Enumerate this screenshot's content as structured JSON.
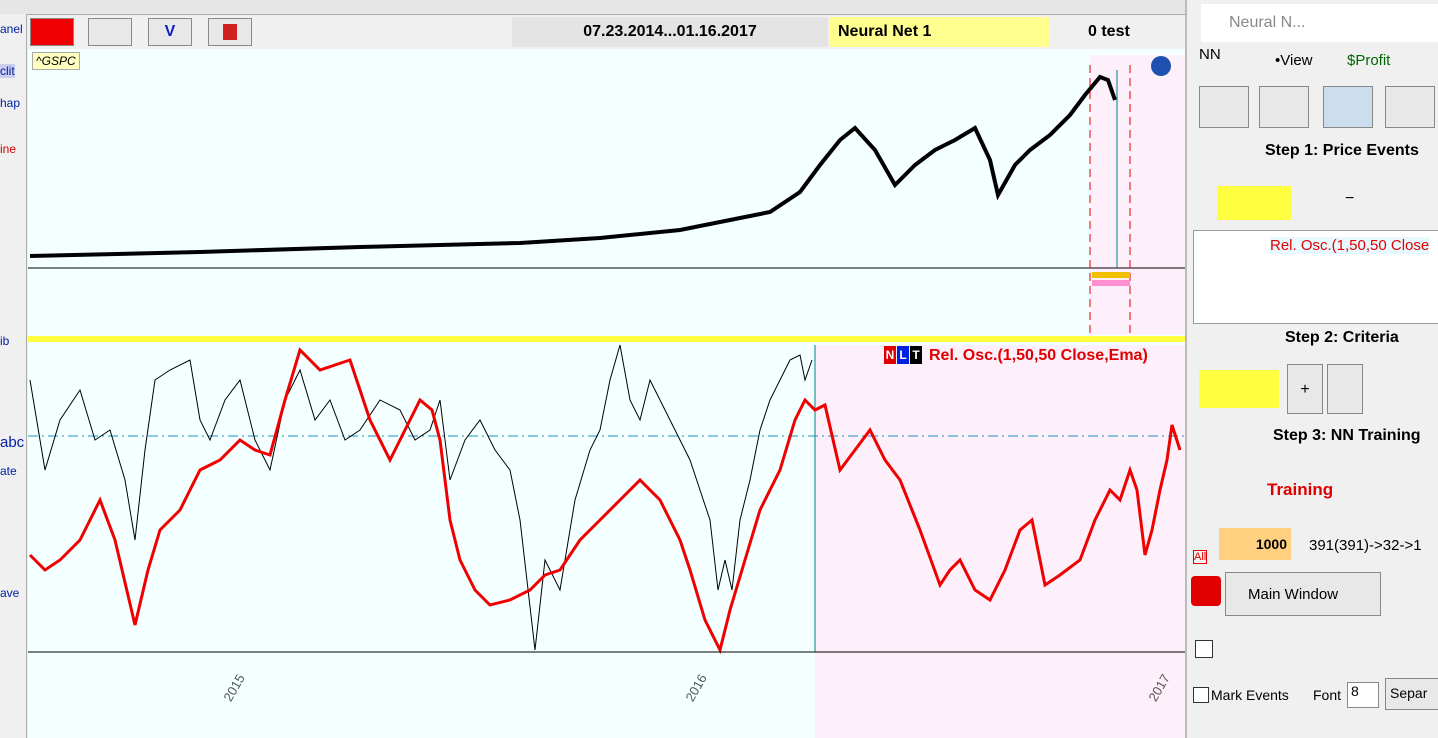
{
  "toolbar": {
    "date_range": "07.23.2014...01.16.2017",
    "model": "Neural Net  1",
    "mode": "0 test"
  },
  "left_tools": [
    "anel",
    "clit",
    "hap",
    "ine",
    "ib",
    "abc",
    "ate",
    "ave"
  ],
  "price_chart": {
    "symbol": "^GSPC"
  },
  "oscillator_chart": {
    "indicator_flags": [
      "N",
      "L",
      "T"
    ],
    "indicator": "Rel. Osc.(1,50,50 Close,Ema)",
    "x_labels": [
      "2015",
      "2016",
      "2017"
    ]
  },
  "panel": {
    "title": "Neural N...",
    "tabs": [
      "NN",
      "•View",
      "$Profit"
    ],
    "step1": "Step 1: Price Events",
    "step1_minus": "−",
    "event_item": "Rel. Osc.(1,50,50 Close",
    "step2": "Step 2: Criteria",
    "step2_plus": "+",
    "step3": "Step 3: NN Training",
    "training": "Training",
    "epochs": "1000",
    "all": "All",
    "topology": "391(391)->32->1",
    "main_window": "Main Window",
    "mark_events": "Mark Events",
    "font_label": "Font",
    "font_size": "8",
    "separator": "Separ"
  }
}
